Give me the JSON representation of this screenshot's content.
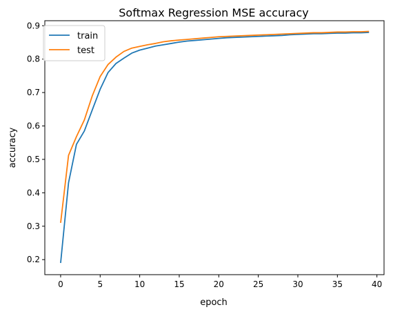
{
  "chart_data": {
    "type": "line",
    "title": "Softmax Regression MSE accuracy",
    "xlabel": "epoch",
    "ylabel": "accuracy",
    "xlim": [
      -2,
      40.9
    ],
    "ylim": [
      0.155,
      0.915
    ],
    "xticks": [
      0,
      5,
      10,
      15,
      20,
      25,
      30,
      35,
      40
    ],
    "yticks": [
      0.2,
      0.3,
      0.4,
      0.5,
      0.6,
      0.7,
      0.8,
      0.9
    ],
    "grid": false,
    "legend_position": "top-left",
    "x": [
      0,
      1,
      2,
      3,
      4,
      5,
      6,
      7,
      8,
      9,
      10,
      11,
      12,
      13,
      14,
      15,
      16,
      17,
      18,
      19,
      20,
      21,
      22,
      23,
      24,
      25,
      26,
      27,
      28,
      29,
      30,
      31,
      32,
      33,
      34,
      35,
      36,
      37,
      38,
      39
    ],
    "series": [
      {
        "name": "train",
        "color": "#1f77b4",
        "values": [
          0.19,
          0.43,
          0.545,
          0.585,
          0.648,
          0.71,
          0.76,
          0.787,
          0.803,
          0.818,
          0.827,
          0.833,
          0.839,
          0.843,
          0.847,
          0.851,
          0.854,
          0.856,
          0.858,
          0.86,
          0.862,
          0.864,
          0.865,
          0.866,
          0.867,
          0.868,
          0.869,
          0.87,
          0.871,
          0.873,
          0.874,
          0.875,
          0.876,
          0.876,
          0.877,
          0.878,
          0.878,
          0.879,
          0.879,
          0.88
        ]
      },
      {
        "name": "test",
        "color": "#ff7f0e",
        "values": [
          0.31,
          0.512,
          0.568,
          0.618,
          0.69,
          0.748,
          0.784,
          0.806,
          0.823,
          0.833,
          0.838,
          0.843,
          0.847,
          0.852,
          0.855,
          0.857,
          0.859,
          0.861,
          0.863,
          0.865,
          0.867,
          0.868,
          0.869,
          0.87,
          0.871,
          0.872,
          0.873,
          0.874,
          0.875,
          0.876,
          0.877,
          0.878,
          0.879,
          0.879,
          0.88,
          0.881,
          0.881,
          0.882,
          0.882,
          0.883
        ]
      }
    ]
  }
}
